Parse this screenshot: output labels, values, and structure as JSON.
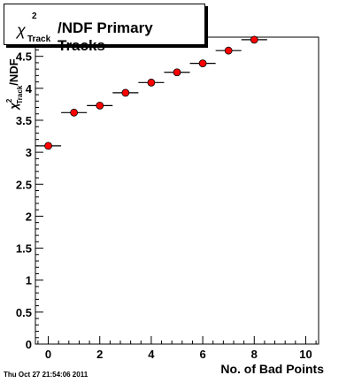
{
  "chart_data": {
    "type": "scatter",
    "title": {
      "symbol": "χ",
      "superscript": "2",
      "subscript": "Track",
      "rest": "/NDF Primary Tracks"
    },
    "xlabel": "No. of Bad Points",
    "ylabel": {
      "symbol": "χ",
      "superscript": "2",
      "subscript": "Track",
      "rest": "/NDF"
    },
    "xlim": [
      -0.5,
      10.5
    ],
    "ylim": [
      0,
      4.8
    ],
    "xticks": [
      0,
      2,
      4,
      6,
      8,
      10
    ],
    "yticks": [
      0,
      0.5,
      1,
      1.5,
      2,
      2.5,
      3,
      3.5,
      4,
      4.5
    ],
    "ytick_labels": [
      "0",
      "0.5",
      "1",
      "1.5",
      "2",
      "2.5",
      "3",
      "3.5",
      "4",
      "4.5"
    ],
    "grid": false,
    "x_error": 0.5,
    "series": [
      {
        "x": [
          0,
          1,
          2,
          3,
          4,
          5,
          6,
          7,
          8
        ],
        "y": [
          3.1,
          3.62,
          3.73,
          3.93,
          4.09,
          4.25,
          4.39,
          4.59,
          4.76
        ],
        "y_error": [
          0.02,
          0.02,
          0.02,
          0.02,
          0.02,
          0.02,
          0.02,
          0.02,
          0.04
        ]
      }
    ],
    "colors": {
      "marker": "#ff0000",
      "marker_edge": "#000000",
      "axis": "#000000"
    }
  },
  "footer": {
    "timestamp": "Thu Oct 27 21:54:06 2011"
  }
}
